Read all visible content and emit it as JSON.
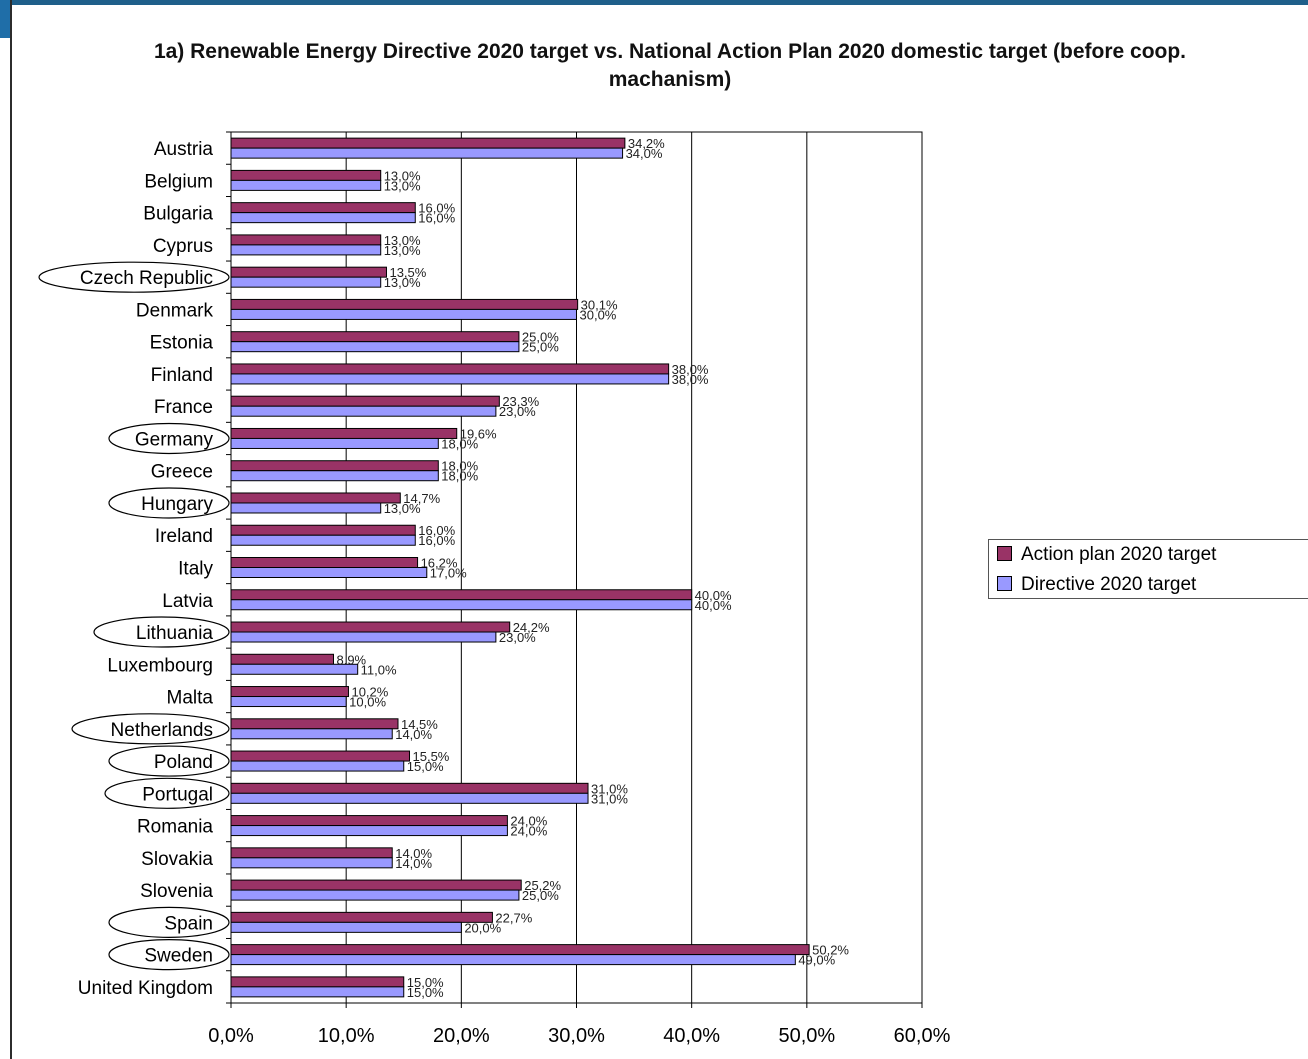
{
  "chart_data": {
    "type": "bar",
    "orientation": "horizontal",
    "title": "1a) Renewable Energy Directive 2020 target vs. National Action Plan 2020 domestic target (before coop. machanism)",
    "categories": [
      "Austria",
      "Belgium",
      "Bulgaria",
      "Cyprus",
      "Czech Republic",
      "Denmark",
      "Estonia",
      "Finland",
      "France",
      "Germany",
      "Greece",
      "Hungary",
      "Ireland",
      "Italy",
      "Latvia",
      "Lithuania",
      "Luxembourg",
      "Malta",
      "Netherlands",
      "Poland",
      "Portugal",
      "Romania",
      "Slovakia",
      "Slovenia",
      "Spain",
      "Sweden",
      "United Kingdom"
    ],
    "circled_categories": [
      "Czech Republic",
      "Germany",
      "Hungary",
      "Lithuania",
      "Netherlands",
      "Poland",
      "Portugal",
      "Spain",
      "Sweden"
    ],
    "series": [
      {
        "name": "Action plan 2020 target",
        "color": "#993366",
        "values": [
          34.2,
          13.0,
          16.0,
          13.0,
          13.5,
          30.1,
          25.0,
          38.0,
          23.3,
          19.6,
          18.0,
          14.7,
          16.0,
          16.2,
          40.0,
          24.2,
          8.9,
          10.2,
          14.5,
          15.5,
          31.0,
          24.0,
          14.0,
          25.2,
          22.7,
          50.2,
          15.0
        ],
        "labels": [
          "34,2%",
          "13,0%",
          "16,0%",
          "13,0%",
          "13,5%",
          "30,1%",
          "25,0%",
          "38,0%",
          "23,3%",
          "19,6%",
          "18,0%",
          "14,7%",
          "16,0%",
          "16,2%",
          "40,0%",
          "24,2%",
          "8,9%",
          "10,2%",
          "14,5%",
          "15,5%",
          "31,0%",
          "24,0%",
          "14,0%",
          "25,2%",
          "22,7%",
          "50,2%",
          "15,0%"
        ]
      },
      {
        "name": "Directive 2020 target",
        "color": "#9999ff",
        "values": [
          34.0,
          13.0,
          16.0,
          13.0,
          13.0,
          30.0,
          25.0,
          38.0,
          23.0,
          18.0,
          18.0,
          13.0,
          16.0,
          17.0,
          40.0,
          23.0,
          11.0,
          10.0,
          14.0,
          15.0,
          31.0,
          24.0,
          14.0,
          25.0,
          20.0,
          49.0,
          15.0
        ],
        "labels": [
          "34,0%",
          "13,0%",
          "16,0%",
          "13,0%",
          "13,0%",
          "30,0%",
          "25,0%",
          "38,0%",
          "23,0%",
          "18,0%",
          "18,0%",
          "13,0%",
          "16,0%",
          "17,0%",
          "40,0%",
          "23,0%",
          "11,0%",
          "10,0%",
          "14,0%",
          "15,0%",
          "31,0%",
          "24,0%",
          "14,0%",
          "25,0%",
          "20,0%",
          "49,0%",
          "15,0%"
        ]
      }
    ],
    "xlim": [
      0,
      60
    ],
    "xticks": [
      0,
      10,
      20,
      30,
      40,
      50,
      60
    ],
    "xtick_labels": [
      "0,0%",
      "10,0%",
      "20,0%",
      "30,0%",
      "40,0%",
      "50,0%",
      "60,0%"
    ],
    "grid": "vertical",
    "legend_position": "right"
  }
}
